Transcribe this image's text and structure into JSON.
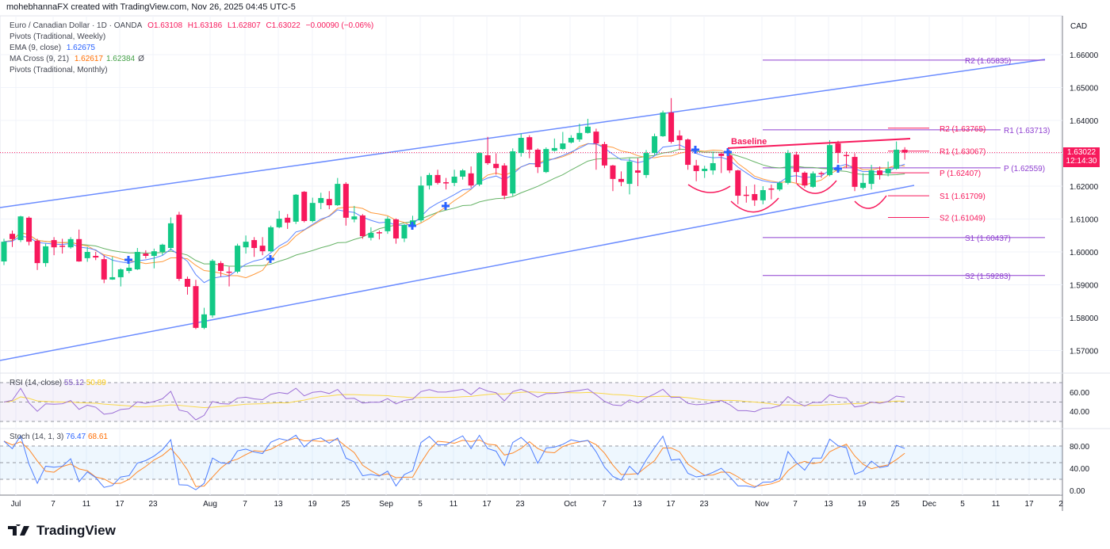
{
  "header": {
    "attribution": "mohebhannaFX created with TradingView.com, Nov 26, 2025 04:45 UTC-5"
  },
  "legend": {
    "symbol": "Euro / Canadian Dollar · 1D · OANDA",
    "o": "O1.63108",
    "h": "H1.63186",
    "l": "L1.62807",
    "c": "C1.63022",
    "change": "−0.00090 (−0.06%)",
    "pivots_weekly": "Pivots (Traditional, Weekly)",
    "ema_label": "EMA (9, close)",
    "ema_value": "1.62675",
    "ma_cross_label": "MA Cross (9, 21)",
    "ma_fast_value": "1.62617",
    "ma_slow_value": "1.62384",
    "ma_cross_extra": "Ø",
    "pivots_monthly": "Pivots (Traditional, Monthly)"
  },
  "currency": "CAD",
  "current_price": {
    "price": "1.63022",
    "countdown": "12:14:30"
  },
  "colors": {
    "up": "#13c986",
    "down": "#f7195c",
    "ema": "#5b84ff",
    "ma_fast": "#ff9a3c",
    "ma_slow": "#66b366",
    "channel": "#6b8cff",
    "weekly_pivot": "#f7195c",
    "monthly_pivot": "#8e3fd0",
    "rsi": "#9c6fd6",
    "rsi_ma": "#f9d84a",
    "stoch_k": "#4c7dff",
    "stoch_d": "#ff8a2b"
  },
  "annotations": {
    "baseline": "Baseline"
  },
  "pivots_weekly": [
    {
      "label": "R2 (1.63765)",
      "value": 1.63765
    },
    {
      "label": "R1 (1.63067)",
      "value": 1.63067
    },
    {
      "label": "P (1.62407)",
      "value": 1.62407
    },
    {
      "label": "S1 (1.61709)",
      "value": 1.61709
    },
    {
      "label": "S2 (1.61049)",
      "value": 1.61049
    }
  ],
  "pivots_monthly": [
    {
      "label": "R2 (1.65835)",
      "value": 1.65835
    },
    {
      "label": "R1 (1.63713)",
      "value": 1.63713
    },
    {
      "label": "P (1.62559)",
      "value": 1.62559
    },
    {
      "label": "S1 (1.60437)",
      "value": 1.60437
    },
    {
      "label": "S2 (1.59283)",
      "value": 1.59283
    }
  ],
  "rsi": {
    "label": "RSI (14, close)",
    "value": "55.12",
    "ma_value": "50.89",
    "ticks": [
      "60.00",
      "40.00"
    ]
  },
  "stoch": {
    "label": "Stoch (14, 1, 3)",
    "k": "76.47",
    "d": "68.61",
    "ticks": [
      "80.00",
      "40.00",
      "0.00"
    ]
  },
  "chart_data": {
    "type": "candlestick",
    "symbol": "EURCAD",
    "interval": "1D",
    "y_ticks": [
      "1.66000",
      "1.65000",
      "1.64000",
      "1.63000",
      "1.62000",
      "1.61000",
      "1.60000",
      "1.59000",
      "1.58000",
      "1.57000"
    ],
    "x_ticks": [
      "Jul",
      "7",
      "11",
      "17",
      "23",
      "Aug",
      "7",
      "13",
      "19",
      "25",
      "Sep",
      "5",
      "11",
      "17",
      "23",
      "Oct",
      "7",
      "13",
      "17",
      "23",
      "Nov",
      "7",
      "13",
      "19",
      "25",
      "Dec",
      "5",
      "11",
      "17",
      "2"
    ],
    "ylim": [
      1.565,
      1.667
    ],
    "grid": true,
    "candles_ohlc": [
      [
        1.5971,
        1.604,
        1.596,
        1.6031
      ],
      [
        1.6055,
        1.6065,
        1.6015,
        1.6039
      ],
      [
        1.6036,
        1.611,
        1.603,
        1.6108
      ],
      [
        1.6104,
        1.6108,
        1.602,
        1.6031
      ],
      [
        1.6034,
        1.604,
        1.5945,
        1.5966
      ],
      [
        1.5966,
        1.6025,
        1.5955,
        1.6017
      ],
      [
        1.6036,
        1.6045,
        1.599,
        1.6014
      ],
      [
        1.6019,
        1.604,
        1.5995,
        1.6017
      ],
      [
        1.6014,
        1.6045,
        1.601,
        1.6039
      ],
      [
        1.6039,
        1.6068,
        1.597,
        1.5971
      ],
      [
        1.5981,
        1.6015,
        1.597,
        1.6
      ],
      [
        1.5988,
        1.6,
        1.5975,
        1.5983
      ],
      [
        1.5978,
        1.599,
        1.5905,
        1.5916
      ],
      [
        1.5916,
        1.5985,
        1.5915,
        1.5923
      ],
      [
        1.5923,
        1.595,
        1.5895,
        1.5947
      ],
      [
        1.5942,
        1.5975,
        1.5935,
        1.5952
      ],
      [
        1.5947,
        1.6012,
        1.5945,
        1.6
      ],
      [
        1.5995,
        1.6005,
        1.598,
        1.5988
      ],
      [
        1.5988,
        1.601,
        1.595,
        1.6002
      ],
      [
        1.6,
        1.6025,
        1.599,
        1.6022
      ],
      [
        1.6012,
        1.6105,
        1.6005,
        1.6087
      ],
      [
        1.6113,
        1.6122,
        1.5912,
        1.5918
      ],
      [
        1.5918,
        1.5925,
        1.587,
        1.5894
      ],
      [
        1.5896,
        1.5915,
        1.5765,
        1.5769
      ],
      [
        1.5769,
        1.583,
        1.5765,
        1.581
      ],
      [
        1.5807,
        1.5978,
        1.58,
        1.5973
      ],
      [
        1.5966,
        1.5972,
        1.5925,
        1.5942
      ],
      [
        1.594,
        1.5955,
        1.5895,
        1.5937
      ],
      [
        1.594,
        1.6025,
        1.5935,
        1.6019
      ],
      [
        1.6014,
        1.605,
        1.5995,
        1.6031
      ],
      [
        1.6036,
        1.6045,
        1.5985,
        1.6012
      ],
      [
        1.6019,
        1.6045,
        1.599,
        1.6002
      ],
      [
        1.6002,
        1.608,
        1.6,
        1.6075
      ],
      [
        1.6075,
        1.6125,
        1.6072,
        1.6101
      ],
      [
        1.6104,
        1.6115,
        1.607,
        1.6089
      ],
      [
        1.6092,
        1.6176,
        1.6085,
        1.6174
      ],
      [
        1.6183,
        1.6185,
        1.609,
        1.6094
      ],
      [
        1.6094,
        1.6165,
        1.609,
        1.6149
      ],
      [
        1.6149,
        1.618,
        1.613,
        1.6164
      ],
      [
        1.6161,
        1.6185,
        1.613,
        1.6142
      ],
      [
        1.6142,
        1.6225,
        1.614,
        1.6207
      ],
      [
        1.6207,
        1.6212,
        1.608,
        1.6104
      ],
      [
        1.6099,
        1.614,
        1.609,
        1.6108
      ],
      [
        1.6111,
        1.6115,
        1.604,
        1.6048
      ],
      [
        1.6043,
        1.6075,
        1.6035,
        1.6058
      ],
      [
        1.606,
        1.6065,
        1.6038,
        1.6058
      ],
      [
        1.6063,
        1.6108,
        1.6055,
        1.6101
      ],
      [
        1.6099,
        1.6102,
        1.6025,
        1.6041
      ],
      [
        1.6041,
        1.6085,
        1.603,
        1.6082
      ],
      [
        1.6077,
        1.611,
        1.607,
        1.6096
      ],
      [
        1.6096,
        1.623,
        1.609,
        1.6202
      ],
      [
        1.6202,
        1.624,
        1.619,
        1.6234
      ],
      [
        1.6234,
        1.625,
        1.6205,
        1.621
      ],
      [
        1.6212,
        1.6225,
        1.619,
        1.621
      ],
      [
        1.621,
        1.625,
        1.62,
        1.6229
      ],
      [
        1.6229,
        1.6252,
        1.622,
        1.6248
      ],
      [
        1.6239,
        1.626,
        1.6195,
        1.6202
      ],
      [
        1.6205,
        1.6303,
        1.62,
        1.6301
      ],
      [
        1.6294,
        1.635,
        1.6265,
        1.627
      ],
      [
        1.6268,
        1.63,
        1.6235,
        1.6255
      ],
      [
        1.6263,
        1.627,
        1.616,
        1.6171
      ],
      [
        1.6178,
        1.6315,
        1.617,
        1.6306
      ],
      [
        1.6301,
        1.636,
        1.629,
        1.6347
      ],
      [
        1.6349,
        1.6355,
        1.6285,
        1.6311
      ],
      [
        1.6311,
        1.6315,
        1.624,
        1.6258
      ],
      [
        1.6243,
        1.6318,
        1.624,
        1.6313
      ],
      [
        1.6308,
        1.6345,
        1.6305,
        1.6316
      ],
      [
        1.6313,
        1.6365,
        1.631,
        1.633
      ],
      [
        1.6333,
        1.6355,
        1.633,
        1.6347
      ],
      [
        1.6342,
        1.639,
        1.6335,
        1.6362
      ],
      [
        1.6362,
        1.6405,
        1.636,
        1.6381
      ],
      [
        1.6366,
        1.6375,
        1.625,
        1.633
      ],
      [
        1.6328,
        1.6335,
        1.6255,
        1.6263
      ],
      [
        1.6263,
        1.6265,
        1.6185,
        1.6222
      ],
      [
        1.6222,
        1.6245,
        1.62,
        1.6213
      ],
      [
        1.6207,
        1.6285,
        1.6175,
        1.6275
      ],
      [
        1.6248,
        1.6285,
        1.62,
        1.6241
      ],
      [
        1.6234,
        1.631,
        1.6225,
        1.6301
      ],
      [
        1.6301,
        1.636,
        1.6295,
        1.6352
      ],
      [
        1.6352,
        1.643,
        1.635,
        1.6424
      ],
      [
        1.6424,
        1.6468,
        1.633,
        1.6335
      ],
      [
        1.6354,
        1.637,
        1.631,
        1.634
      ],
      [
        1.6342,
        1.6345,
        1.625,
        1.6265
      ],
      [
        1.6263,
        1.628,
        1.6215,
        1.6246
      ],
      [
        1.6246,
        1.6262,
        1.6225,
        1.6253
      ],
      [
        1.6248,
        1.6305,
        1.6235,
        1.627
      ],
      [
        1.6299,
        1.6303,
        1.624,
        1.6292
      ],
      [
        1.6294,
        1.631,
        1.624,
        1.6248
      ],
      [
        1.6248,
        1.625,
        1.6145,
        1.6171
      ],
      [
        1.6174,
        1.62,
        1.615,
        1.6171
      ],
      [
        1.6176,
        1.6205,
        1.614,
        1.6157
      ],
      [
        1.6157,
        1.62,
        1.6145,
        1.6188
      ],
      [
        1.6193,
        1.6205,
        1.616,
        1.619
      ],
      [
        1.619,
        1.6215,
        1.6185,
        1.621
      ],
      [
        1.621,
        1.631,
        1.6205,
        1.6301
      ],
      [
        1.6296,
        1.6305,
        1.621,
        1.6243
      ],
      [
        1.6241,
        1.6245,
        1.6195,
        1.6202
      ],
      [
        1.6198,
        1.6245,
        1.6195,
        1.6239
      ],
      [
        1.624,
        1.6245,
        1.6225,
        1.6239
      ],
      [
        1.6234,
        1.634,
        1.623,
        1.6325
      ],
      [
        1.633,
        1.6338,
        1.627,
        1.6301
      ],
      [
        1.6295,
        1.6305,
        1.6255,
        1.6294
      ],
      [
        1.6289,
        1.63,
        1.6185,
        1.6198
      ],
      [
        1.6195,
        1.624,
        1.619,
        1.621
      ],
      [
        1.6207,
        1.6265,
        1.619,
        1.6248
      ],
      [
        1.6248,
        1.626,
        1.622,
        1.6234
      ],
      [
        1.6239,
        1.6275,
        1.623,
        1.6253
      ],
      [
        1.6253,
        1.6336,
        1.625,
        1.6311
      ],
      [
        1.63108,
        1.63186,
        1.62807,
        1.63022
      ]
    ]
  }
}
